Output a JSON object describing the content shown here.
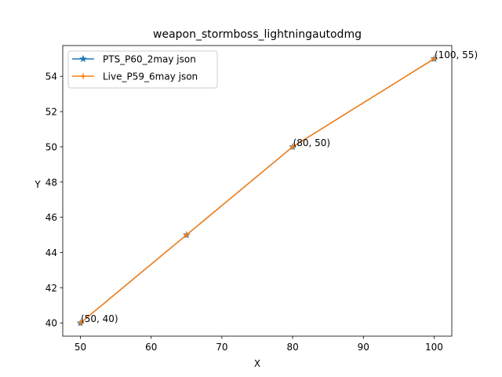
{
  "chart_data": {
    "type": "line",
    "title": "weapon_stormboss_lightningautodmg",
    "xlabel": "X",
    "ylabel": "Y",
    "xlim": [
      47.5,
      102.5
    ],
    "ylim": [
      39.25,
      55.75
    ],
    "xticks": [
      50,
      60,
      70,
      80,
      90,
      100
    ],
    "yticks": [
      40,
      42,
      44,
      46,
      48,
      50,
      52,
      54
    ],
    "grid": false,
    "legend_position": "top-left",
    "series": [
      {
        "name": "PTS_P60_2may json",
        "color": "#1f77b4",
        "marker": "star",
        "x": [
          50,
          65,
          80,
          100
        ],
        "y": [
          40,
          45,
          50,
          55
        ]
      },
      {
        "name": "Live_P59_6may json",
        "color": "#ff7f0e",
        "marker": "plus",
        "x": [
          50,
          65,
          80,
          100
        ],
        "y": [
          40,
          45,
          50,
          55
        ]
      }
    ],
    "annotations": [
      {
        "text": "(50, 40)",
        "x": 50,
        "y": 40
      },
      {
        "text": "(80, 50)",
        "x": 80,
        "y": 50
      },
      {
        "text": "(100, 55)",
        "x": 100,
        "y": 55
      }
    ]
  }
}
